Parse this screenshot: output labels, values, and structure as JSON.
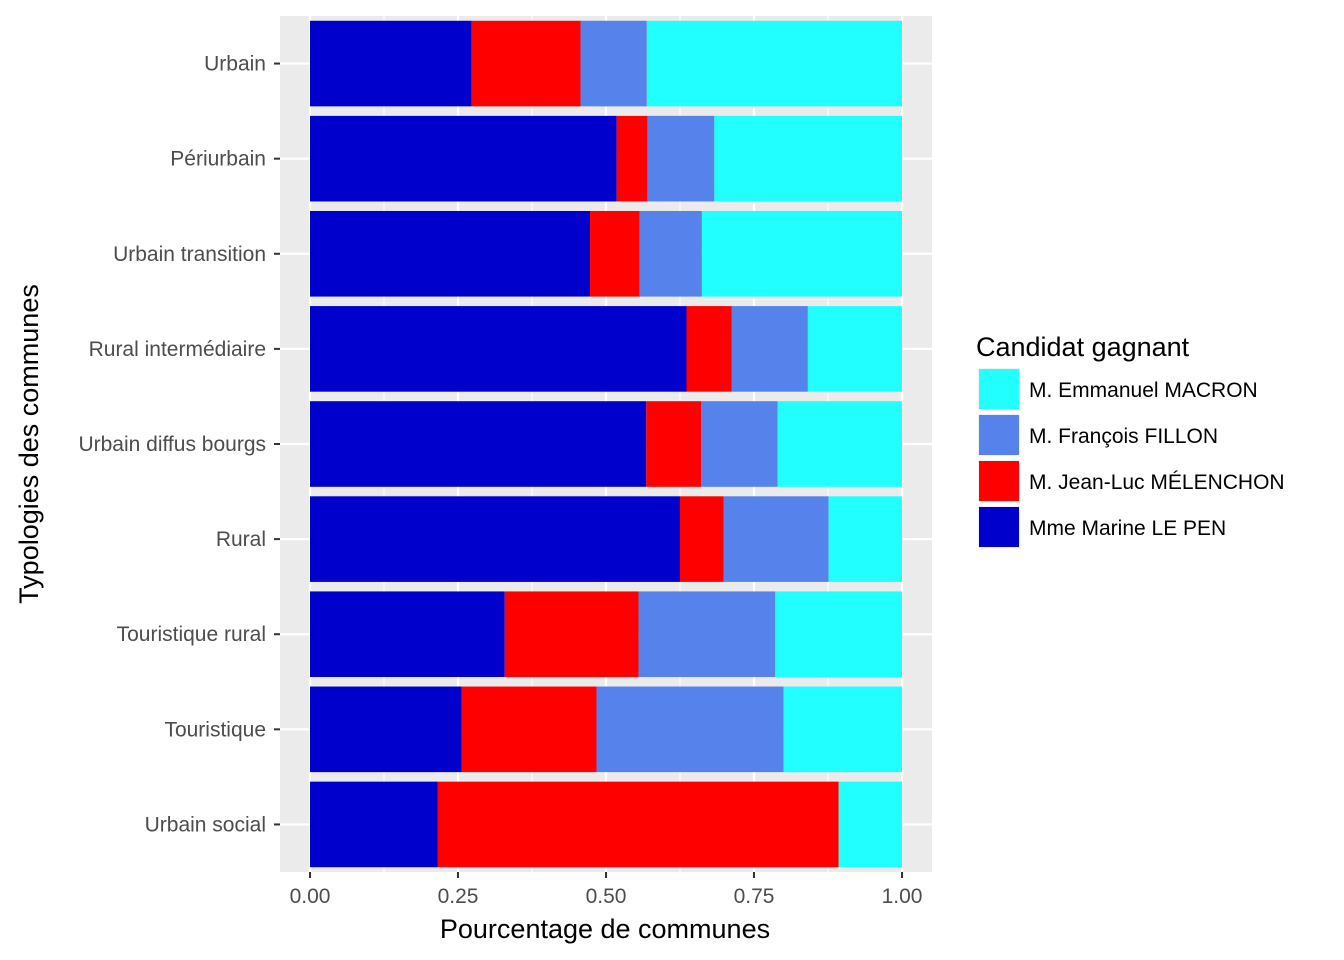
{
  "chart_data": {
    "type": "bar",
    "orientation": "horizontal",
    "stacked": true,
    "xlabel": "Pourcentage de communes",
    "ylabel": "Typologies des communes",
    "xlim": [
      0,
      1
    ],
    "x_ticks": [
      "0.00",
      "0.25",
      "0.50",
      "0.75",
      "1.00"
    ],
    "x_tick_values": [
      0,
      0.25,
      0.5,
      0.75,
      1.0
    ],
    "grid": true,
    "legend_position": "right",
    "legend_title": "Candidat gagnant",
    "categories": [
      "Urbain",
      "Périurbain",
      "Urbain transition",
      "Rural intermédiaire",
      "Urbain diffus bourgs",
      "Rural",
      "Touristique rural",
      "Touristique",
      "Urbain social"
    ],
    "series": [
      {
        "name": "Mme Marine LE PEN",
        "color": "#0000CD",
        "values": [
          0.273,
          0.518,
          0.473,
          0.636,
          0.568,
          0.625,
          0.329,
          0.256,
          0.216
        ]
      },
      {
        "name": "M. Jean-Luc MÉLENCHON",
        "color": "#FF0000",
        "values": [
          0.184,
          0.052,
          0.084,
          0.076,
          0.093,
          0.074,
          0.226,
          0.228,
          0.677
        ]
      },
      {
        "name": "M. François FILLON",
        "color": "#5582EB",
        "values": [
          0.112,
          0.113,
          0.105,
          0.129,
          0.129,
          0.177,
          0.231,
          0.316,
          0.0
        ]
      },
      {
        "name": "M. Emmanuel MACRON",
        "color": "#22FFFF",
        "values": [
          0.431,
          0.317,
          0.338,
          0.159,
          0.21,
          0.124,
          0.214,
          0.2,
          0.107
        ]
      }
    ],
    "legend_order": [
      "M. Emmanuel MACRON",
      "M. François FILLON",
      "M. Jean-Luc MÉLENCHON",
      "Mme Marine LE PEN"
    ]
  }
}
